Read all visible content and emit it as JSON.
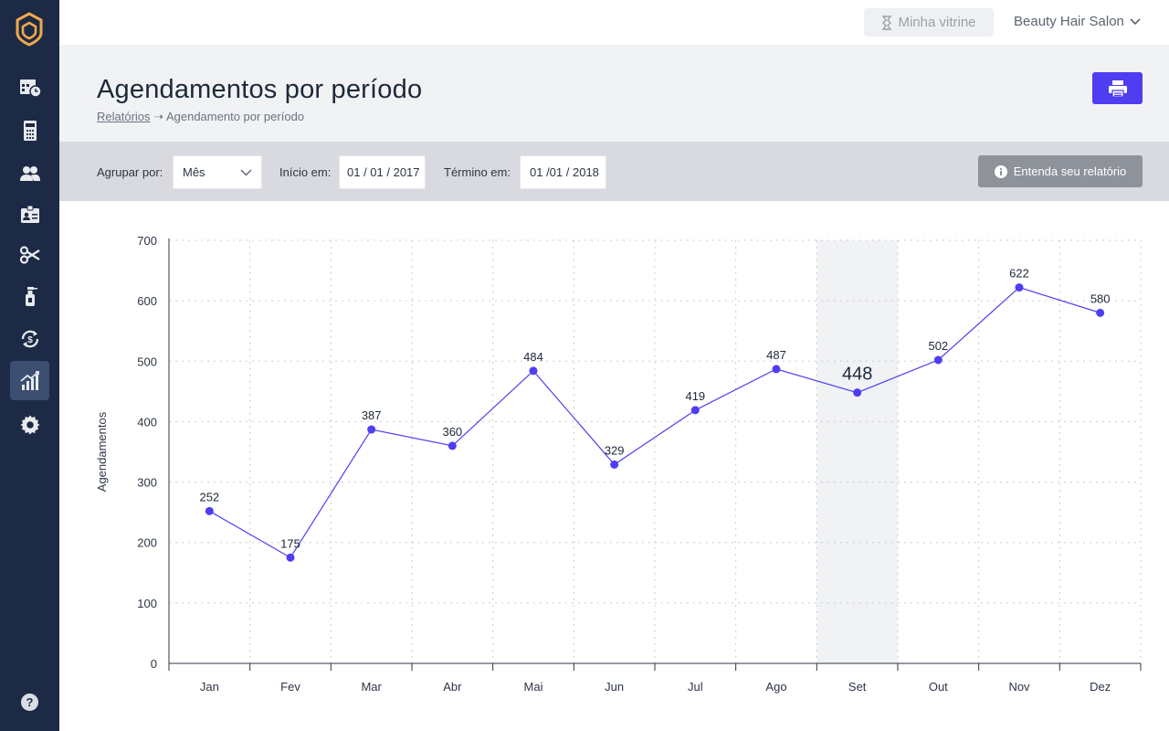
{
  "topbar": {
    "vitrine_label": "Minha vitrine",
    "account_name": "Beauty Hair Salon"
  },
  "header": {
    "title": "Agendamentos por período",
    "breadcrumb_link": "Relatórios",
    "breadcrumb_current": "Agendamento por período"
  },
  "filters": {
    "group_label": "Agrupar por:",
    "group_value": "Mês",
    "start_label": "Início em:",
    "start_value": "01 / 01 / 2017",
    "end_label": "Término em:",
    "end_value": "01 /01 / 2018",
    "info_label": "Entenda seu relatório"
  },
  "sidebar": {
    "items": [
      "calendar-clock-icon",
      "calculator-icon",
      "users-icon",
      "id-card-icon",
      "scissors-icon",
      "spray-bottle-icon",
      "money-cycle-icon",
      "bar-chart-icon",
      "gear-icon"
    ],
    "active_index": 7,
    "help_label": "?"
  },
  "colors": {
    "sidebar": "#1c2a45",
    "accent": "#4f3df2",
    "highlight": "#f1f2f4"
  },
  "chart_data": {
    "type": "line",
    "categories": [
      "Jan",
      "Fev",
      "Mar",
      "Abr",
      "Mai",
      "Jun",
      "Jul",
      "Ago",
      "Set",
      "Out",
      "Nov",
      "Dez"
    ],
    "values": [
      252,
      175,
      387,
      360,
      484,
      329,
      419,
      487,
      448,
      502,
      622,
      580
    ],
    "ylabel": "Agendamentos",
    "ylim": [
      0,
      700
    ],
    "yticks": [
      0,
      100,
      200,
      300,
      400,
      500,
      600,
      700
    ],
    "highlight_category": "Set",
    "grid": true
  }
}
